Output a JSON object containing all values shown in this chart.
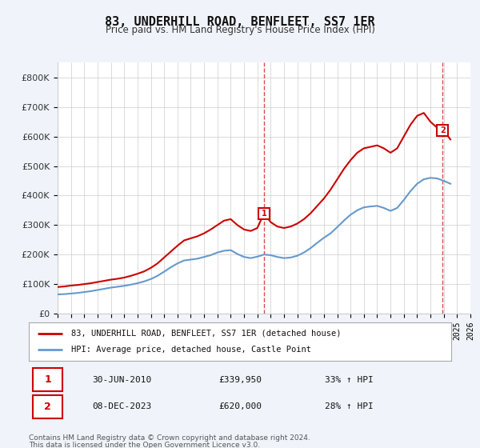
{
  "title": "83, UNDERHILL ROAD, BENFLEET, SS7 1ER",
  "subtitle": "Price paid vs. HM Land Registry's House Price Index (HPI)",
  "legend_line1": "83, UNDERHILL ROAD, BENFLEET, SS7 1ER (detached house)",
  "legend_line2": "HPI: Average price, detached house, Castle Point",
  "annotation1_label": "1",
  "annotation1_date": "30-JUN-2010",
  "annotation1_price": "£339,950",
  "annotation1_hpi": "33% ↑ HPI",
  "annotation1_year": 2010.5,
  "annotation1_value": 339950,
  "annotation2_label": "2",
  "annotation2_date": "08-DEC-2023",
  "annotation2_price": "£620,000",
  "annotation2_hpi": "28% ↑ HPI",
  "annotation2_year": 2023.92,
  "annotation2_value": 620000,
  "footer1": "Contains HM Land Registry data © Crown copyright and database right 2024.",
  "footer2": "This data is licensed under the Open Government Licence v3.0.",
  "background_color": "#f0f4fa",
  "plot_bg_color": "#ffffff",
  "red_line_color": "#cc0000",
  "blue_line_color": "#6699cc",
  "grid_color": "#cccccc",
  "ylim": [
    0,
    850000
  ],
  "xlim_start": 1995,
  "xlim_end": 2026,
  "yticks": [
    0,
    100000,
    200000,
    300000,
    400000,
    500000,
    600000,
    700000,
    800000
  ],
  "ytick_labels": [
    "£0",
    "£100K",
    "£200K",
    "£300K",
    "£400K",
    "£500K",
    "£600K",
    "£700K",
    "£800K"
  ],
  "xticks": [
    1995,
    1996,
    1997,
    1998,
    1999,
    2000,
    2001,
    2002,
    2003,
    2004,
    2005,
    2006,
    2007,
    2008,
    2009,
    2010,
    2011,
    2012,
    2013,
    2014,
    2015,
    2016,
    2017,
    2018,
    2019,
    2020,
    2021,
    2022,
    2023,
    2024,
    2025,
    2026
  ],
  "red_x": [
    1995.0,
    1995.5,
    1996.0,
    1996.5,
    1997.0,
    1997.5,
    1998.0,
    1998.5,
    1999.0,
    1999.5,
    2000.0,
    2000.5,
    2001.0,
    2001.5,
    2002.0,
    2002.5,
    2003.0,
    2003.5,
    2004.0,
    2004.5,
    2005.0,
    2005.5,
    2006.0,
    2006.5,
    2007.0,
    2007.5,
    2008.0,
    2008.5,
    2009.0,
    2009.5,
    2010.0,
    2010.5,
    2011.0,
    2011.5,
    2012.0,
    2012.5,
    2013.0,
    2013.5,
    2014.0,
    2014.5,
    2015.0,
    2015.5,
    2016.0,
    2016.5,
    2017.0,
    2017.5,
    2018.0,
    2018.5,
    2019.0,
    2019.5,
    2020.0,
    2020.5,
    2021.0,
    2021.5,
    2022.0,
    2022.5,
    2023.0,
    2023.5,
    2024.0,
    2024.5
  ],
  "red_y": [
    90000,
    92000,
    95000,
    97000,
    100000,
    103000,
    107000,
    111000,
    115000,
    118000,
    122000,
    128000,
    135000,
    143000,
    155000,
    170000,
    190000,
    210000,
    230000,
    248000,
    255000,
    262000,
    272000,
    285000,
    300000,
    315000,
    320000,
    300000,
    285000,
    280000,
    290000,
    339950,
    310000,
    295000,
    290000,
    295000,
    305000,
    320000,
    340000,
    365000,
    390000,
    420000,
    455000,
    490000,
    520000,
    545000,
    560000,
    565000,
    570000,
    560000,
    545000,
    560000,
    600000,
    640000,
    670000,
    680000,
    650000,
    630000,
    620000,
    590000
  ],
  "blue_x": [
    1995.0,
    1995.5,
    1996.0,
    1996.5,
    1997.0,
    1997.5,
    1998.0,
    1998.5,
    1999.0,
    1999.5,
    2000.0,
    2000.5,
    2001.0,
    2001.5,
    2002.0,
    2002.5,
    2003.0,
    2003.5,
    2004.0,
    2004.5,
    2005.0,
    2005.5,
    2006.0,
    2006.5,
    2007.0,
    2007.5,
    2008.0,
    2008.5,
    2009.0,
    2009.5,
    2010.0,
    2010.5,
    2011.0,
    2011.5,
    2012.0,
    2012.5,
    2013.0,
    2013.5,
    2014.0,
    2014.5,
    2015.0,
    2015.5,
    2016.0,
    2016.5,
    2017.0,
    2017.5,
    2018.0,
    2018.5,
    2019.0,
    2019.5,
    2020.0,
    2020.5,
    2021.0,
    2021.5,
    2022.0,
    2022.5,
    2023.0,
    2023.5,
    2024.0,
    2024.5
  ],
  "blue_y": [
    65000,
    66000,
    68000,
    70000,
    73000,
    76000,
    80000,
    84000,
    88000,
    91000,
    94000,
    98000,
    103000,
    109000,
    117000,
    128000,
    142000,
    157000,
    170000,
    180000,
    183000,
    186000,
    192000,
    198000,
    207000,
    213000,
    215000,
    202000,
    192000,
    188000,
    193000,
    200000,
    198000,
    192000,
    188000,
    190000,
    196000,
    207000,
    222000,
    240000,
    257000,
    272000,
    293000,
    315000,
    335000,
    350000,
    360000,
    363000,
    365000,
    358000,
    348000,
    358000,
    385000,
    415000,
    440000,
    455000,
    460000,
    458000,
    450000,
    440000
  ]
}
